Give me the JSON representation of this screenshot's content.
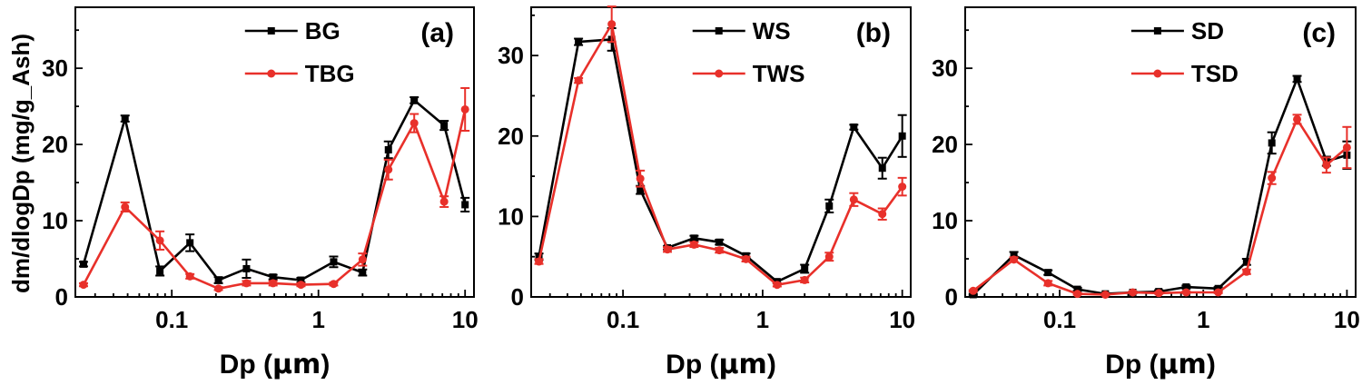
{
  "figure": {
    "shared_ylabel": "dm/dlogDp (mg/g_Ash)",
    "xlabel_prefix": "Dp (",
    "xlabel_unit": "μm",
    "xlabel_suffix": ")"
  },
  "colors": {
    "series_a": "#000000",
    "series_b": "#e8302a"
  },
  "chart_data": [
    {
      "type": "line",
      "panel_label": "(a)",
      "xscale": "log",
      "xlim": [
        0.022,
        11.5
      ],
      "ylim": [
        0,
        38
      ],
      "xticks": [
        0.1,
        1,
        10
      ],
      "xtick_labels": [
        "0.1",
        "1",
        "10"
      ],
      "yticks": [
        0,
        10,
        20,
        30
      ],
      "ytick_labels": [
        "0",
        "10",
        "20",
        "30"
      ],
      "x": [
        0.025,
        0.048,
        0.083,
        0.133,
        0.208,
        0.323,
        0.49,
        0.76,
        1.27,
        2.0,
        3.0,
        4.5,
        7.2,
        10.0
      ],
      "series": [
        {
          "name": "BG",
          "marker": "square",
          "values": [
            4.3,
            23.4,
            3.4,
            7.1,
            2.2,
            3.7,
            2.6,
            2.2,
            4.6,
            3.2,
            19.3,
            25.8,
            22.5,
            12.1
          ],
          "errors": [
            0.3,
            0.4,
            0.6,
            1.1,
            0.4,
            1.2,
            0.3,
            0.3,
            0.7,
            0.4,
            1.1,
            0.4,
            0.6,
            0.9
          ]
        },
        {
          "name": "TBG",
          "marker": "circle",
          "values": [
            1.6,
            11.8,
            7.4,
            2.7,
            1.1,
            1.8,
            1.8,
            1.6,
            1.7,
            4.9,
            16.7,
            22.8,
            12.5,
            24.6
          ],
          "errors": [
            0.2,
            0.6,
            1.2,
            0.3,
            0.2,
            0.3,
            0.3,
            0.2,
            0.2,
            0.8,
            1.3,
            1.2,
            0.7,
            2.8
          ]
        }
      ],
      "legend": [
        "BG",
        "TBG"
      ],
      "xlabel": "Dp (μm)"
    },
    {
      "type": "line",
      "panel_label": "(b)",
      "xscale": "log",
      "xlim": [
        0.022,
        11.5
      ],
      "ylim": [
        0,
        36
      ],
      "xticks": [
        0.1,
        1,
        10
      ],
      "xtick_labels": [
        "0.1",
        "1",
        "10"
      ],
      "yticks": [
        0,
        10,
        20,
        30
      ],
      "ytick_labels": [
        "0",
        "10",
        "20",
        "30"
      ],
      "x": [
        0.025,
        0.048,
        0.083,
        0.133,
        0.208,
        0.323,
        0.49,
        0.76,
        1.27,
        2.0,
        3.0,
        4.5,
        7.2,
        10.0
      ],
      "series": [
        {
          "name": "WS",
          "marker": "square",
          "values": [
            5.0,
            31.7,
            32.0,
            13.3,
            6.1,
            7.3,
            6.8,
            5.1,
            1.9,
            3.5,
            11.3,
            21.1,
            16.0,
            20.0
          ],
          "errors": [
            0.4,
            0.4,
            1.4,
            0.5,
            0.2,
            0.3,
            0.3,
            0.3,
            0.2,
            0.5,
            0.8,
            0.3,
            1.3,
            2.6
          ]
        },
        {
          "name": "TWS",
          "marker": "circle",
          "values": [
            4.4,
            26.9,
            33.9,
            14.7,
            5.9,
            6.5,
            5.8,
            4.7,
            1.5,
            2.1,
            5.0,
            12.1,
            10.3,
            13.7
          ],
          "errors": [
            0.3,
            0.3,
            2.2,
            1.0,
            0.3,
            0.3,
            0.3,
            0.3,
            0.2,
            0.3,
            0.5,
            0.8,
            0.7,
            1.1
          ]
        }
      ],
      "legend": [
        "WS",
        "TWS"
      ],
      "xlabel": "Dp (μm)"
    },
    {
      "type": "line",
      "panel_label": "(c)",
      "xscale": "log",
      "xlim": [
        0.022,
        11.5
      ],
      "ylim": [
        0,
        38
      ],
      "xticks": [
        0.1,
        1,
        10
      ],
      "xtick_labels": [
        "0.1",
        "1",
        "10"
      ],
      "yticks": [
        0,
        10,
        20,
        30
      ],
      "ytick_labels": [
        "0",
        "10",
        "20",
        "30"
      ],
      "x": [
        0.025,
        0.048,
        0.083,
        0.133,
        0.208,
        0.323,
        0.49,
        0.76,
        1.27,
        2.0,
        3.0,
        4.5,
        7.2,
        10.0
      ],
      "series": [
        {
          "name": "SD",
          "marker": "square",
          "values": [
            0.3,
            5.5,
            3.2,
            1.0,
            0.4,
            0.6,
            0.7,
            1.3,
            1.1,
            4.6,
            20.2,
            28.6,
            17.8,
            18.6
          ],
          "errors": [
            0.1,
            0.4,
            0.3,
            0.2,
            0.1,
            0.1,
            0.2,
            0.2,
            0.2,
            0.4,
            1.4,
            0.4,
            0.6,
            1.8
          ]
        },
        {
          "name": "TSD",
          "marker": "circle",
          "values": [
            0.8,
            4.9,
            1.8,
            0.4,
            0.3,
            0.6,
            0.5,
            0.6,
            0.6,
            3.3,
            15.6,
            23.3,
            17.3,
            19.6
          ],
          "errors": [
            0.1,
            0.3,
            0.3,
            0.1,
            0.1,
            0.1,
            0.1,
            0.1,
            0.1,
            0.3,
            0.8,
            0.6,
            1.0,
            2.7
          ]
        }
      ],
      "legend": [
        "SD",
        "TSD"
      ],
      "xlabel": "Dp (μm)"
    }
  ]
}
